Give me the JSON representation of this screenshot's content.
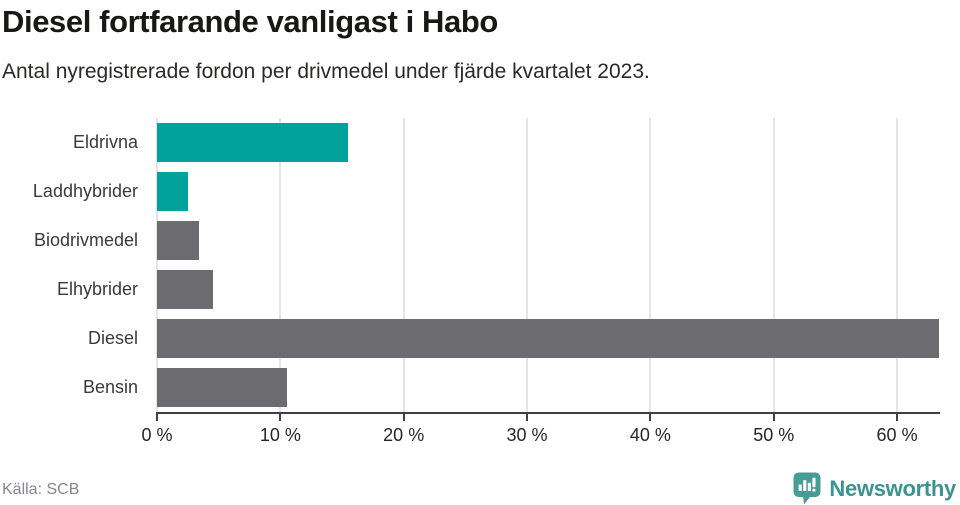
{
  "header": {
    "title": "Diesel fortfarande vanligast i Habo",
    "subtitle": "Antal nyregistrerade fordon per drivmedel under fjärde kvartalet 2023."
  },
  "chart_data": {
    "type": "bar",
    "orientation": "horizontal",
    "title": "Diesel fortfarande vanligast i Habo",
    "subtitle": "Antal nyregistrerade fordon per drivmedel under fjärde kvartalet 2023.",
    "categories": [
      "Eldrivna",
      "Laddhybrider",
      "Biodrivmedel",
      "Elhybrider",
      "Diesel",
      "Bensin"
    ],
    "values": [
      15.5,
      2.5,
      3.4,
      4.5,
      63.4,
      10.5
    ],
    "unit": "%",
    "bar_colors": [
      "#00a29b",
      "#00a29b",
      "#6c6b70",
      "#6c6b70",
      "#6c6b70",
      "#6c6b70"
    ],
    "xlim": [
      0,
      63.4
    ],
    "x_ticks": [
      0,
      10,
      20,
      30,
      40,
      50,
      60
    ],
    "x_tick_labels": [
      "0 %",
      "10 %",
      "20 %",
      "30 %",
      "40 %",
      "50 %",
      "60 %"
    ],
    "grid": "vertical",
    "legend": "none"
  },
  "colors": {
    "accent_teal": "#00a29b",
    "bar_gray": "#6c6b70",
    "gridline": "#e4e4e4",
    "axis": "#3f3f44",
    "title_text": "#181816",
    "label_text": "#3a3a3a",
    "source_text": "#85858d",
    "brand_teal": "#3b948f"
  },
  "footer": {
    "source": "Källa: SCB",
    "brand": "Newsworthy"
  },
  "icons": {
    "newsworthy_logo": "speech-bubble-bar-chart-icon"
  }
}
